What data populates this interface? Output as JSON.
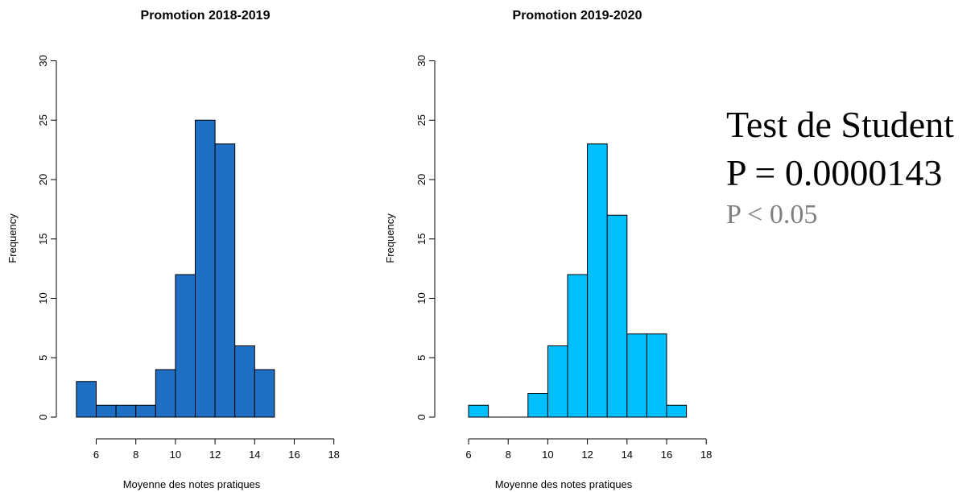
{
  "chart_data": [
    {
      "type": "bar",
      "title": "Promotion 2018-2019",
      "xlabel": "Moyenne des notes pratiques",
      "ylabel": "Frequency",
      "xlim": [
        5,
        18
      ],
      "ylim": [
        0,
        30
      ],
      "x_ticks": [
        6,
        8,
        10,
        12,
        14,
        16,
        18
      ],
      "y_ticks": [
        0,
        5,
        10,
        15,
        20,
        25,
        30
      ],
      "bin_width": 1,
      "bins": [
        {
          "start": 5,
          "count": 3
        },
        {
          "start": 6,
          "count": 1
        },
        {
          "start": 7,
          "count": 1
        },
        {
          "start": 8,
          "count": 1
        },
        {
          "start": 9,
          "count": 4
        },
        {
          "start": 10,
          "count": 12
        },
        {
          "start": 11,
          "count": 25
        },
        {
          "start": 12,
          "count": 23
        },
        {
          "start": 13,
          "count": 6
        },
        {
          "start": 14,
          "count": 4
        }
      ],
      "color": "#1f6fc4",
      "grid": false
    },
    {
      "type": "bar",
      "title": "Promotion 2019-2020",
      "xlabel": "Moyenne des notes pratiques",
      "ylabel": "Frequency",
      "xlim": [
        6,
        18
      ],
      "ylim": [
        0,
        30
      ],
      "x_ticks": [
        6,
        8,
        10,
        12,
        14,
        16,
        18
      ],
      "y_ticks": [
        0,
        5,
        10,
        15,
        20,
        25,
        30
      ],
      "bin_width": 1,
      "bins": [
        {
          "start": 6,
          "count": 1
        },
        {
          "start": 7,
          "count": 0
        },
        {
          "start": 8,
          "count": 0
        },
        {
          "start": 9,
          "count": 2
        },
        {
          "start": 10,
          "count": 6
        },
        {
          "start": 11,
          "count": 12
        },
        {
          "start": 12,
          "count": 23
        },
        {
          "start": 13,
          "count": 17
        },
        {
          "start": 14,
          "count": 7
        },
        {
          "start": 15,
          "count": 7
        },
        {
          "start": 16,
          "count": 1
        }
      ],
      "color": "#00bfff",
      "grid": false
    }
  ],
  "stats": {
    "test_name": "Test de Student",
    "p_value": "P = 0.0000143",
    "significance": "P < 0.05",
    "significance_color": "#808080"
  }
}
